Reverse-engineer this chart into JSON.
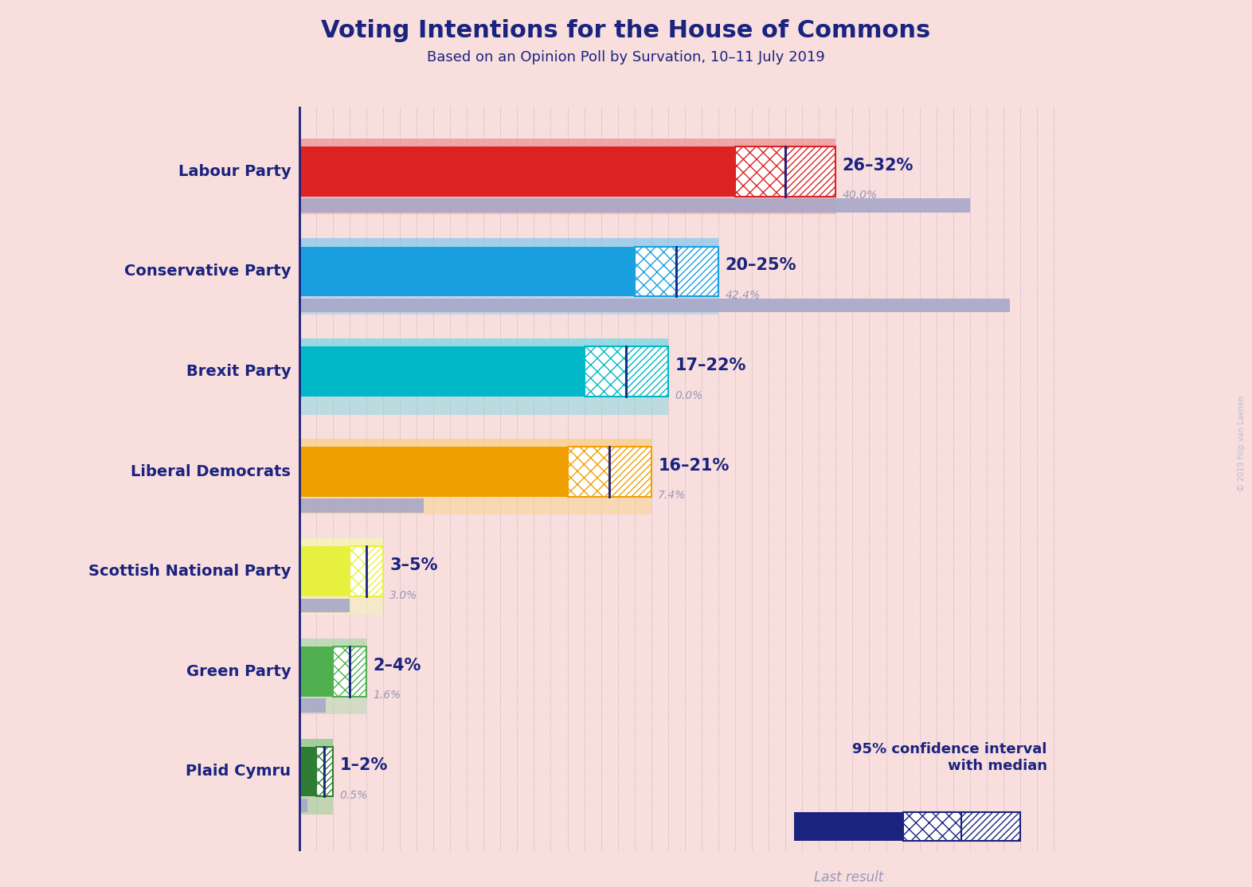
{
  "title": "Voting Intentions for the House of Commons",
  "subtitle": "Based on an Opinion Poll by Survation, 10–11 July 2019",
  "copyright": "© 2019 Filip van Laenen",
  "background_color": "#f9dede",
  "title_color": "#1a237e",
  "subtitle_color": "#1a237e",
  "parties": [
    {
      "name": "Labour Party",
      "ci_low": 26,
      "median": 29,
      "ci_high": 32,
      "last": 40.0,
      "color": "#dd2222",
      "color_light": "#e89090",
      "label": "26–32%",
      "last_label": "40.0%"
    },
    {
      "name": "Conservative Party",
      "ci_low": 20,
      "median": 22.5,
      "ci_high": 25,
      "last": 42.4,
      "color": "#1a9fe0",
      "color_light": "#80c8f0",
      "label": "20–25%",
      "last_label": "42.4%"
    },
    {
      "name": "Brexit Party",
      "ci_low": 17,
      "median": 19.5,
      "ci_high": 22,
      "last": 0.0,
      "color": "#00b8c8",
      "color_light": "#70d8e4",
      "label": "17–22%",
      "last_label": "0.0%"
    },
    {
      "name": "Liberal Democrats",
      "ci_low": 16,
      "median": 18.5,
      "ci_high": 21,
      "last": 7.4,
      "color": "#f0a000",
      "color_light": "#f8d080",
      "label": "16–21%",
      "last_label": "7.4%"
    },
    {
      "name": "Scottish National Party",
      "ci_low": 3,
      "median": 4,
      "ci_high": 5,
      "last": 3.0,
      "color": "#e8f040",
      "color_light": "#f4f8b0",
      "label": "3–5%",
      "last_label": "3.0%"
    },
    {
      "name": "Green Party",
      "ci_low": 2,
      "median": 3,
      "ci_high": 4,
      "last": 1.6,
      "color": "#50b050",
      "color_light": "#a8d8a8",
      "label": "2–4%",
      "last_label": "1.6%"
    },
    {
      "name": "Plaid Cymru",
      "ci_low": 1,
      "median": 1.5,
      "ci_high": 2,
      "last": 0.5,
      "color": "#2e7d32",
      "color_light": "#80c880",
      "label": "1–2%",
      "last_label": "0.5%"
    }
  ],
  "dotted_color": "#7070a0",
  "label_color": "#1a237e",
  "last_color": "#9898b8",
  "last_bar_color": "#a8a8c8",
  "legend_bar_color": "#1a237e",
  "legend_text_color": "#1a237e",
  "legend_last_text_color": "#9898b8",
  "x_max": 46
}
